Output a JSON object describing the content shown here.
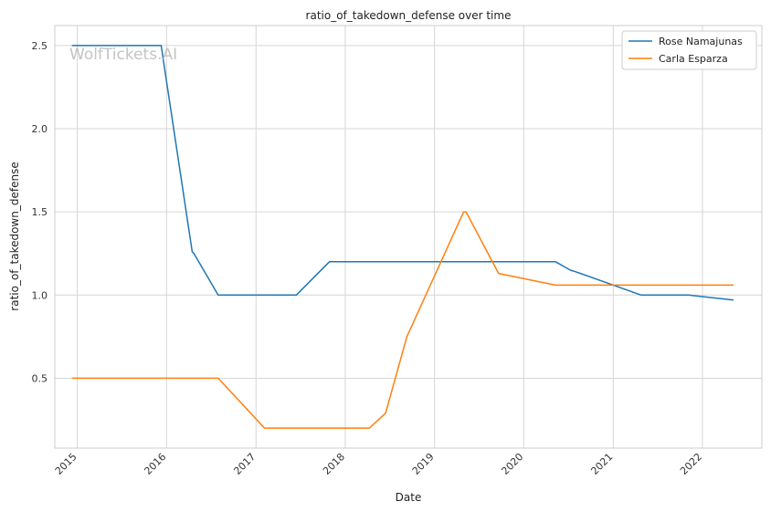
{
  "chart_data": {
    "type": "line",
    "title": "ratio_of_takedown_defense over time",
    "xlabel": "Date",
    "ylabel": "ratio_of_takedown_defense",
    "watermark": "WolfTickets.AI",
    "x_ticks": [
      "2015",
      "2016",
      "2017",
      "2018",
      "2019",
      "2020",
      "2021",
      "2022"
    ],
    "y_ticks": [
      "0.5",
      "1.0",
      "1.5",
      "2.0",
      "2.5"
    ],
    "xlim": [
      "2014-10-01",
      "2022-09-01"
    ],
    "ylim": [
      0.08,
      2.62
    ],
    "grid": true,
    "legend_position": "top-right",
    "series": [
      {
        "name": "Rose Namajunas",
        "color": "#1f77b4",
        "points": [
          [
            "2014-12-10",
            2.5
          ],
          [
            "2015-12-10",
            2.5
          ],
          [
            "2016-04-15",
            1.26
          ],
          [
            "2016-04-22",
            1.25
          ],
          [
            "2016-07-30",
            1.0
          ],
          [
            "2017-06-15",
            1.0
          ],
          [
            "2017-10-28",
            1.2
          ],
          [
            "2020-05-10",
            1.2
          ],
          [
            "2020-07-10",
            1.15
          ],
          [
            "2020-08-01",
            1.14
          ],
          [
            "2021-04-25",
            1.0
          ],
          [
            "2021-11-05",
            1.0
          ],
          [
            "2022-05-08",
            0.97
          ]
        ]
      },
      {
        "name": "Carla Esparza",
        "color": "#ff7f0e",
        "points": [
          [
            "2014-12-10",
            0.5
          ],
          [
            "2016-07-30",
            0.5
          ],
          [
            "2017-02-05",
            0.2
          ],
          [
            "2018-04-10",
            0.2
          ],
          [
            "2018-06-15",
            0.29
          ],
          [
            "2018-09-10",
            0.75
          ],
          [
            "2019-04-30",
            1.5
          ],
          [
            "2019-05-10",
            1.5
          ],
          [
            "2019-09-20",
            1.13
          ],
          [
            "2020-05-10",
            1.06
          ],
          [
            "2022-05-08",
            1.06
          ]
        ]
      }
    ]
  }
}
